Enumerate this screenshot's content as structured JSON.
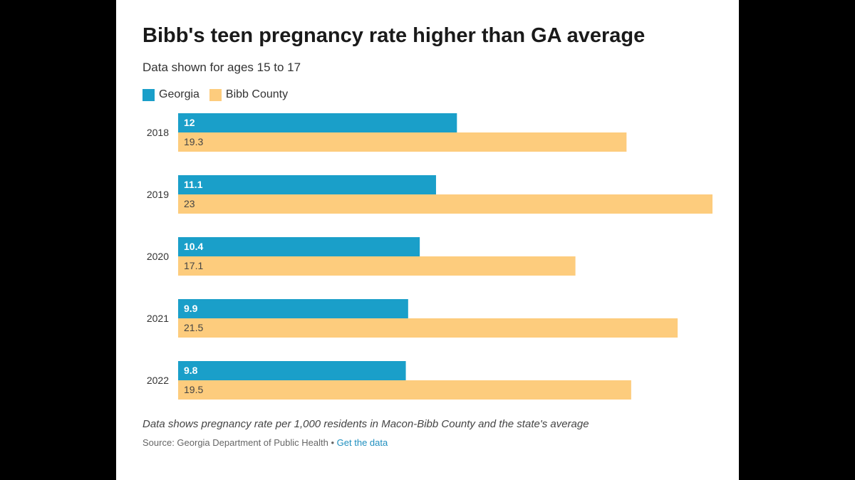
{
  "title": "Bibb's teen pregnancy rate higher than GA average",
  "subtitle": "Data shown for ages 15 to 17",
  "note": "Data shows pregnancy rate per 1,000 residents in Macon-Bibb County and the state's average",
  "source": {
    "text": "Source: Georgia Department of Public Health",
    "separator": "•",
    "link_label": "Get the data"
  },
  "colors": {
    "georgia": "#1a9fc9",
    "bibb": "#fdcc7d",
    "link": "#1f8fbf"
  },
  "legend": [
    {
      "label": "Georgia",
      "color": "#1a9fc9"
    },
    {
      "label": "Bibb County",
      "color": "#fdcc7d"
    }
  ],
  "chart_data": {
    "type": "bar",
    "orientation": "horizontal",
    "title": "Bibb's teen pregnancy rate higher than GA average",
    "subtitle": "Data shown for ages 15 to 17",
    "categories": [
      "2018",
      "2019",
      "2020",
      "2021",
      "2022"
    ],
    "series": [
      {
        "name": "Georgia",
        "color": "#1a9fc9",
        "values": [
          12,
          11.1,
          10.4,
          9.9,
          9.8
        ]
      },
      {
        "name": "Bibb County",
        "color": "#fdcc7d",
        "values": [
          19.3,
          23,
          17.1,
          21.5,
          19.5
        ]
      }
    ],
    "xlim": [
      0,
      23
    ],
    "data_labels": true,
    "grid": false,
    "legend_position": "top-left"
  }
}
